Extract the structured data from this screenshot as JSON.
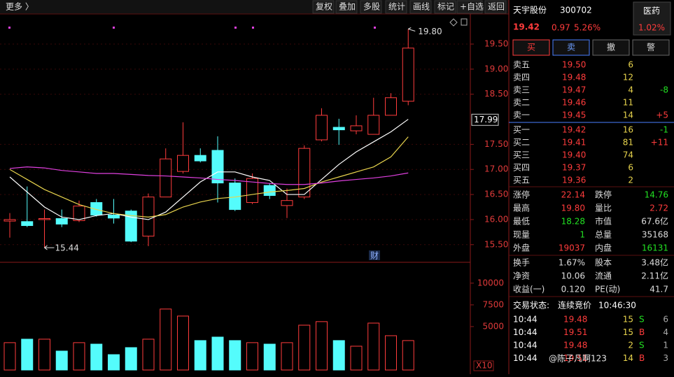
{
  "toolbar": {
    "more": "更多 〉",
    "buttons": [
      "复权",
      "叠加",
      "多股",
      "统计",
      "画线",
      "标记",
      "+自选",
      "返回"
    ]
  },
  "kline": {
    "ylim": [
      15.19,
      20.1
    ],
    "yticks": [
      {
        "value": 19.5,
        "label": "19.50"
      },
      {
        "value": 19.0,
        "label": "19.00"
      },
      {
        "value": 18.5,
        "label": "18.50"
      },
      {
        "value": 17.5,
        "label": "17.50"
      },
      {
        "value": 17.0,
        "label": "17.00"
      },
      {
        "value": 16.5,
        "label": "16.50"
      },
      {
        "value": 16.0,
        "label": "16.00"
      },
      {
        "value": 15.5,
        "label": "15.50"
      }
    ],
    "candles": [
      {
        "o": 15.97,
        "h": 16.13,
        "l": 15.64,
        "c": 16.0
      },
      {
        "o": 15.96,
        "h": 16.66,
        "l": 15.85,
        "c": 15.88
      },
      {
        "o": 16.0,
        "h": 16.2,
        "l": 15.44,
        "c": 16.02
      },
      {
        "o": 16.02,
        "h": 16.2,
        "l": 15.85,
        "c": 15.91
      },
      {
        "o": 15.98,
        "h": 16.38,
        "l": 15.95,
        "c": 16.27
      },
      {
        "o": 16.34,
        "h": 16.41,
        "l": 16.06,
        "c": 16.09
      },
      {
        "o": 16.09,
        "h": 16.41,
        "l": 15.92,
        "c": 16.03
      },
      {
        "o": 16.17,
        "h": 16.2,
        "l": 15.55,
        "c": 15.57
      },
      {
        "o": 15.67,
        "h": 16.52,
        "l": 15.47,
        "c": 16.45
      },
      {
        "o": 16.45,
        "h": 17.42,
        "l": 16.45,
        "c": 17.21
      },
      {
        "o": 16.96,
        "h": 17.94,
        "l": 16.92,
        "c": 17.28
      },
      {
        "o": 17.28,
        "h": 17.42,
        "l": 17.14,
        "c": 17.17
      },
      {
        "o": 17.38,
        "h": 17.66,
        "l": 16.34,
        "c": 16.73
      },
      {
        "o": 16.73,
        "h": 16.82,
        "l": 16.17,
        "c": 16.2
      },
      {
        "o": 16.34,
        "h": 16.92,
        "l": 16.31,
        "c": 16.82
      },
      {
        "o": 16.68,
        "h": 16.73,
        "l": 16.41,
        "c": 16.48
      },
      {
        "o": 16.28,
        "h": 16.62,
        "l": 16.03,
        "c": 16.38
      },
      {
        "o": 16.45,
        "h": 17.48,
        "l": 16.41,
        "c": 17.42
      },
      {
        "o": 17.59,
        "h": 18.22,
        "l": 17.56,
        "c": 18.08
      },
      {
        "o": 17.84,
        "h": 18.01,
        "l": 17.49,
        "c": 17.79
      },
      {
        "o": 17.77,
        "h": 18.08,
        "l": 17.7,
        "c": 17.87
      },
      {
        "o": 17.7,
        "h": 18.43,
        "l": 17.7,
        "c": 18.08
      },
      {
        "o": 18.08,
        "h": 18.52,
        "l": 18.08,
        "c": 18.43
      },
      {
        "o": 18.36,
        "h": 19.8,
        "l": 18.28,
        "c": 19.42
      }
    ],
    "ma": [
      {
        "color": "#ffffff",
        "values": [
          16.85,
          16.55,
          16.25,
          16.05,
          16.0,
          16.08,
          16.12,
          16.05,
          16.0,
          16.15,
          16.45,
          16.75,
          16.95,
          16.95,
          16.85,
          16.78,
          16.5,
          16.5,
          16.8,
          17.1,
          17.35,
          17.55,
          17.75,
          18.0
        ]
      },
      {
        "color": "#e8d44d",
        "values": [
          17.0,
          16.8,
          16.6,
          16.45,
          16.3,
          16.2,
          16.12,
          16.08,
          16.05,
          16.1,
          16.25,
          16.35,
          16.42,
          16.45,
          16.5,
          16.55,
          16.58,
          16.62,
          16.75,
          16.85,
          16.95,
          17.05,
          17.25,
          17.65
        ]
      },
      {
        "color": "#e040e0",
        "values": [
          17.02,
          17.05,
          17.03,
          16.98,
          16.95,
          16.92,
          16.92,
          16.9,
          16.88,
          16.87,
          16.85,
          16.83,
          16.8,
          16.78,
          16.75,
          16.72,
          16.7,
          16.7,
          16.73,
          16.77,
          16.8,
          16.83,
          16.87,
          16.93
        ]
      }
    ],
    "high_mark": {
      "value": 19.8,
      "label": "19.80"
    },
    "low_mark": {
      "value": 15.44,
      "label": "15.44"
    },
    "cursor": {
      "value": 17.99,
      "label": "17.99"
    },
    "event_marker": "财"
  },
  "volume": {
    "ylim": [
      0,
      12000
    ],
    "yticks": [
      10000,
      7500,
      5000
    ],
    "unit": "X10",
    "values": [
      3150,
      3550,
      3550,
      2180,
      3150,
      2980,
      1770,
      2580,
      3550,
      7020,
      6210,
      3390,
      3790,
      3390,
      3150,
      2980,
      3150,
      5160,
      5570,
      3390,
      2740,
      5400,
      3950,
      3390
    ]
  },
  "quote": {
    "name": "天宇股份",
    "code": "300702",
    "sector": "医药",
    "sector_change": "1.02%",
    "price": "19.42",
    "change": "0.97",
    "change_pct": "5.26%",
    "actions": [
      "买",
      "卖",
      "撤",
      "警"
    ],
    "asks": [
      [
        "卖五",
        "19.50",
        "6",
        ""
      ],
      [
        "卖四",
        "19.48",
        "12",
        ""
      ],
      [
        "卖三",
        "19.47",
        "4",
        "-8"
      ],
      [
        "卖二",
        "19.46",
        "11",
        ""
      ],
      [
        "卖一",
        "19.45",
        "14",
        "+5"
      ]
    ],
    "bids": [
      [
        "买一",
        "19.42",
        "16",
        "-1"
      ],
      [
        "买二",
        "19.41",
        "81",
        "+11"
      ],
      [
        "买三",
        "19.40",
        "74",
        ""
      ],
      [
        "买四",
        "19.37",
        "6",
        ""
      ],
      [
        "买五",
        "19.36",
        "2",
        ""
      ]
    ],
    "stats": [
      [
        "涨停",
        "22.14",
        "跌停",
        "14.76"
      ],
      [
        "最高",
        "19.80",
        "量比",
        "2.72"
      ],
      [
        "最低",
        "18.28",
        "市值",
        "67.6亿"
      ],
      [
        "现量",
        "1",
        "总量",
        "35168"
      ],
      [
        "外盘",
        "19037",
        "内盘",
        "16131"
      ]
    ],
    "stats2": [
      [
        "换手",
        "1.67%",
        "股本",
        "3.48亿"
      ],
      [
        "净资",
        "10.06",
        "流通",
        "2.11亿"
      ],
      [
        "收益(一)",
        "0.120",
        "PE(动)",
        "41.7"
      ]
    ],
    "status_label": "交易状态:",
    "status": "连续竞价",
    "time": "10:46:30",
    "ticks": [
      [
        "10:44",
        "19.48",
        "15",
        "S",
        "6"
      ],
      [
        "10:44",
        "19.51",
        "15",
        "B",
        "4"
      ],
      [
        "10:44",
        "19.48",
        "2",
        "S",
        "1"
      ],
      [
        "10:44",
        "19.51",
        "14",
        "B",
        "3"
      ]
    ]
  },
  "watermark": "@陈子凡啊123"
}
